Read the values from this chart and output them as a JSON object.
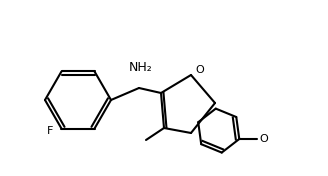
{
  "bg_color": "#ffffff",
  "line_color": "#000000",
  "line_width": 1.5,
  "font_size": 8,
  "label_NH2": "NH₂",
  "label_O": "O",
  "label_F": "F",
  "label_OMe": "O",
  "label_Me": ""
}
